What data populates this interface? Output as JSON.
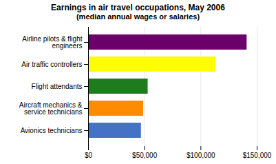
{
  "chart_data": {
    "type": "bar",
    "orientation": "horizontal",
    "title": "Earnings in air travel occupations, May 2006",
    "subtitle": "(median annual wages or salaries)",
    "categories": [
      "Avionics technicians",
      "Aircraft mechanics &\nservice technicians",
      "Flight attendants",
      "Air traffic controllers",
      "Airline pilots & flight\nengineers"
    ],
    "values": [
      47000,
      49000,
      53000,
      113000,
      141000
    ],
    "colors": [
      "#4472C4",
      "#FF8C00",
      "#1E7B1E",
      "#FFFF00",
      "#6B006B"
    ],
    "xlim": [
      0,
      150000
    ],
    "xticks": [
      {
        "value": 0,
        "label": "$0"
      },
      {
        "value": 50000,
        "label": "$50,000"
      },
      {
        "value": 100000,
        "label": "$100,000"
      },
      {
        "value": 150000,
        "label": "$150,000"
      }
    ],
    "grid": true
  }
}
